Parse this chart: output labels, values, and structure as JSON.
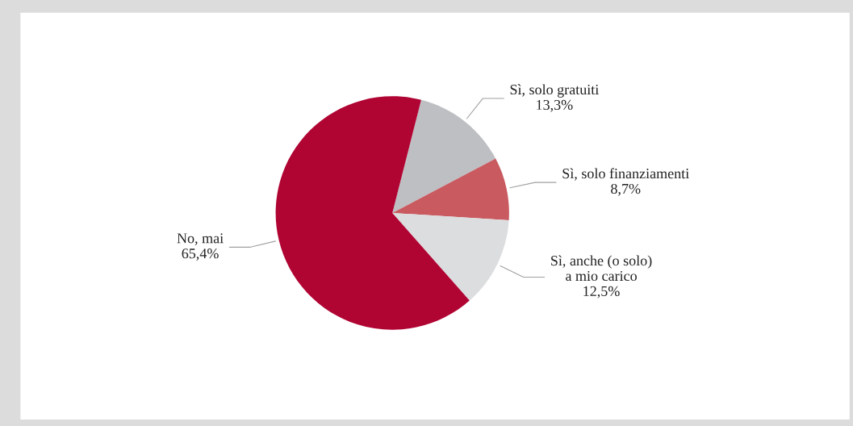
{
  "chart_data": {
    "type": "pie",
    "categories": [
      "Sì, solo gratuiti",
      "Sì, solo finanziamenti",
      "Sì, anche (o solo)\na mio carico",
      "No, mai"
    ],
    "values": [
      13.3,
      8.7,
      12.5,
      65.4
    ],
    "value_labels": [
      "13,3%",
      "8,7%",
      "12,5%",
      "65,4%"
    ],
    "colors": [
      "#bebfc3",
      "#c85a60",
      "#dcdddf",
      "#b00433"
    ]
  }
}
